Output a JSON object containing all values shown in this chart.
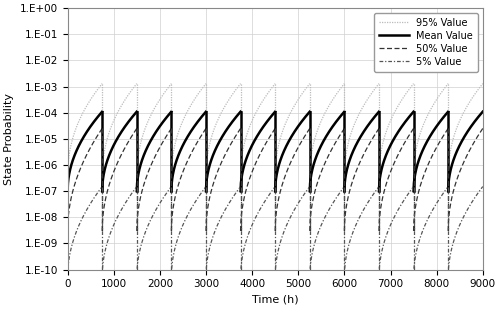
{
  "title": "",
  "xlabel": "Time (h)",
  "ylabel": "State Probability",
  "xlim": [
    0,
    9000
  ],
  "ylim_log": [
    -10,
    0
  ],
  "x_ticks": [
    0,
    1000,
    2000,
    3000,
    4000,
    5000,
    6000,
    7000,
    8000,
    9000
  ],
  "background_color": "#ffffff",
  "legend_loc": "upper right",
  "figsize": [
    5.0,
    3.09
  ],
  "dpi": 100,
  "curves": [
    {
      "label": "95% Value",
      "linestyle": "dotted",
      "linewidth": 0.9,
      "color": "#bbbbbb",
      "p_start": 3e-07,
      "p_end": 0.0013,
      "power": 0.45
    },
    {
      "label": "Mean Value",
      "linestyle": "solid",
      "linewidth": 1.8,
      "color": "#000000",
      "p_start": 1e-07,
      "p_end": 0.00011,
      "power": 0.5
    },
    {
      "label": "50% Value",
      "linestyle": "dashed",
      "linewidth": 0.9,
      "color": "#333333",
      "p_start": 3e-09,
      "p_end": 2.5e-05,
      "power": 0.5
    },
    {
      "label": "5% Value",
      "linestyle": "dashdot",
      "linewidth": 0.9,
      "color": "#555555",
      "p_start": 5e-11,
      "p_end": 1.5e-07,
      "power": 0.5
    }
  ],
  "cycle_starts": [
    0,
    750,
    1500,
    2250,
    3000,
    3750,
    4500,
    5250,
    6000,
    6750,
    7500,
    8250
  ],
  "cycle_ends": [
    750,
    1500,
    2250,
    3000,
    3750,
    4500,
    5250,
    6000,
    6750,
    7500,
    8250,
    9000
  ]
}
